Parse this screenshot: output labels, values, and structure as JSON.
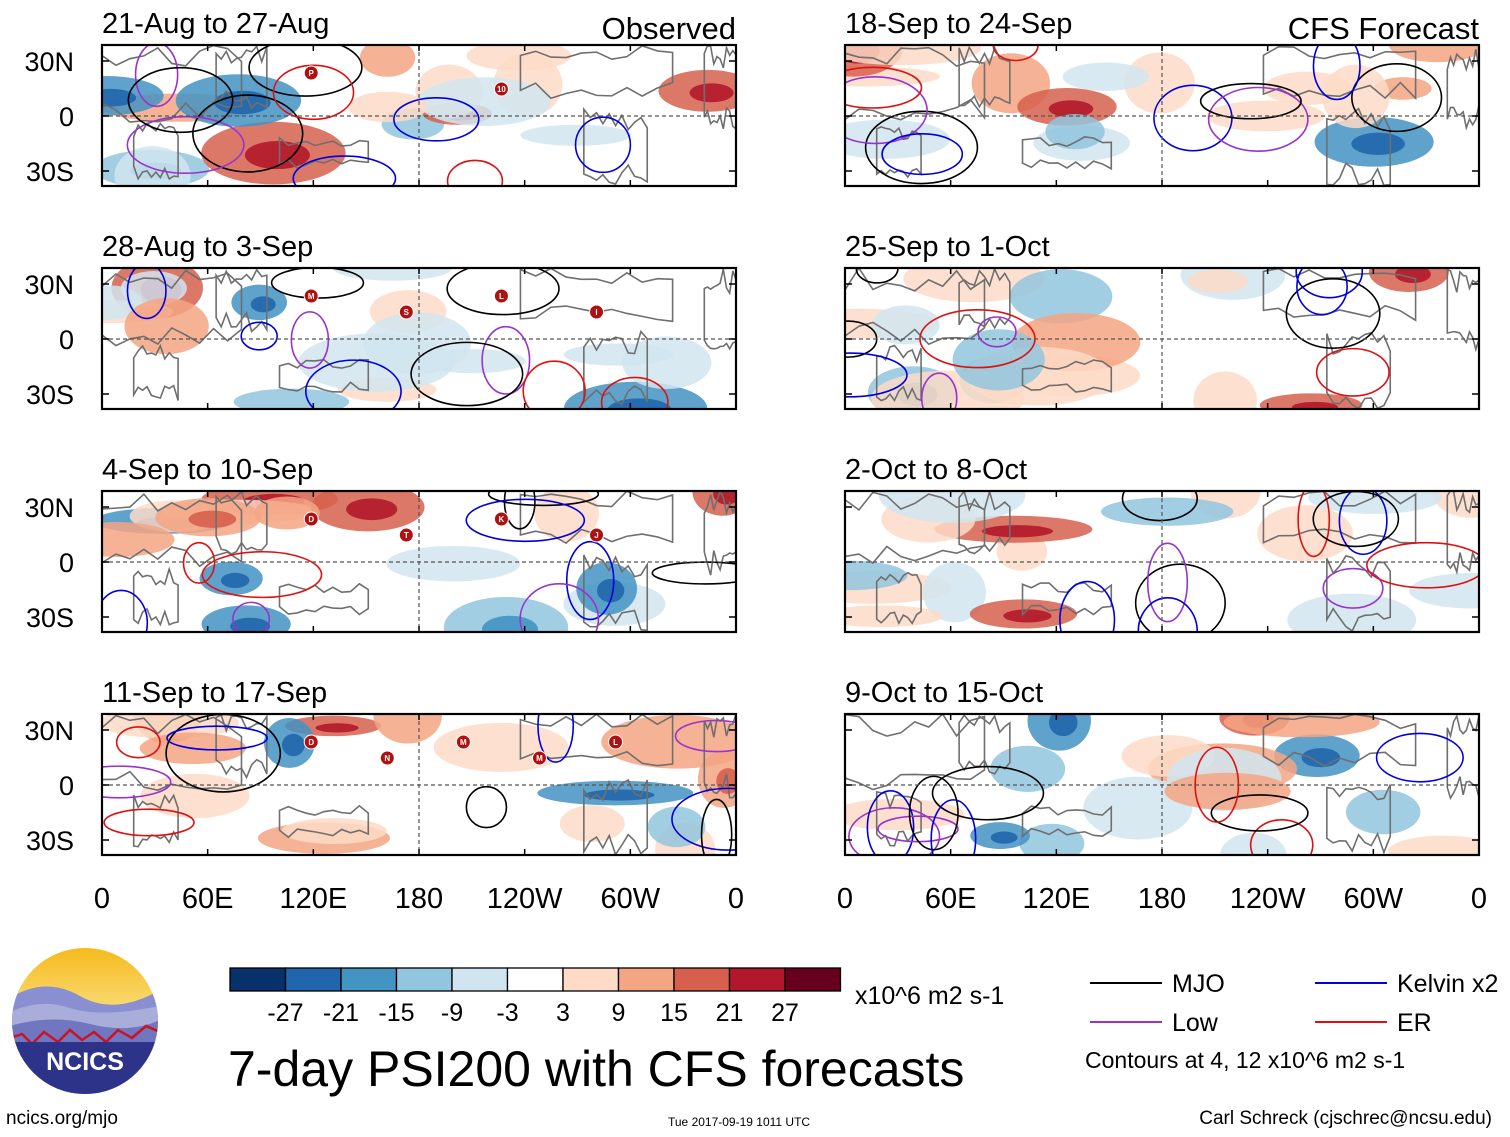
{
  "chart_data": {
    "type": "heatmap",
    "title": "7-day PSI200 with CFS forecasts",
    "variable": "PSI200 anomaly",
    "units": "x10^6 m2 s-1",
    "column_headers": [
      "Observed",
      "CFS Forecast"
    ],
    "panels": [
      {
        "column": "Observed",
        "period": "21-Aug to 27-Aug",
        "storm_labels": [
          "P",
          "10"
        ]
      },
      {
        "column": "Observed",
        "period": "28-Aug to 3-Sep",
        "storm_labels": [
          "M",
          "S",
          "L",
          "I"
        ]
      },
      {
        "column": "Observed",
        "period": "4-Sep to 10-Sep",
        "storm_labels": [
          "D",
          "T",
          "K",
          "J"
        ]
      },
      {
        "column": "Observed",
        "period": "11-Sep to 17-Sep",
        "storm_labels": [
          "D",
          "N",
          "M",
          "M",
          "L"
        ]
      },
      {
        "column": "CFS Forecast",
        "period": "18-Sep to 24-Sep",
        "storm_labels": []
      },
      {
        "column": "CFS Forecast",
        "period": "25-Sep to 1-Oct",
        "storm_labels": []
      },
      {
        "column": "CFS Forecast",
        "period": "2-Oct to 8-Oct",
        "storm_labels": []
      },
      {
        "column": "CFS Forecast",
        "period": "9-Oct to 15-Oct",
        "storm_labels": []
      }
    ],
    "x_ticks": [
      "0",
      "60E",
      "120E",
      "180",
      "120W",
      "60W",
      "0"
    ],
    "y_ticks": [
      "30N",
      "0",
      "30S"
    ],
    "colorbar": {
      "levels": [
        "-27",
        "-21",
        "-15",
        "-9",
        "-3",
        "3",
        "9",
        "15",
        "21",
        "27"
      ],
      "colors": [
        "#08306b",
        "#2166ac",
        "#4393c3",
        "#92c5de",
        "#d1e5f0",
        "#ffffff",
        "#fddbc7",
        "#f4a582",
        "#d6604d",
        "#b2182b",
        "#67001f"
      ],
      "units_label": "x10^6 m2 s-1"
    },
    "contour_legend": [
      {
        "label": "MJO",
        "color": "#000000"
      },
      {
        "label": "Kelvin x2",
        "color": "#0000dd"
      },
      {
        "label": "Low",
        "color": "#9933cc"
      },
      {
        "label": "ER",
        "color": "#dd1111"
      }
    ],
    "contour_note": "Contours at 4, 12 x10^6 m2 s-1"
  },
  "footer": {
    "url": "ncics.org/mjo",
    "timestamp": "Tue 2017-09-19 1011 UTC",
    "credit": "Carl Schreck (cjschrec@ncsu.edu)"
  },
  "logo": {
    "text": "NCICS"
  }
}
